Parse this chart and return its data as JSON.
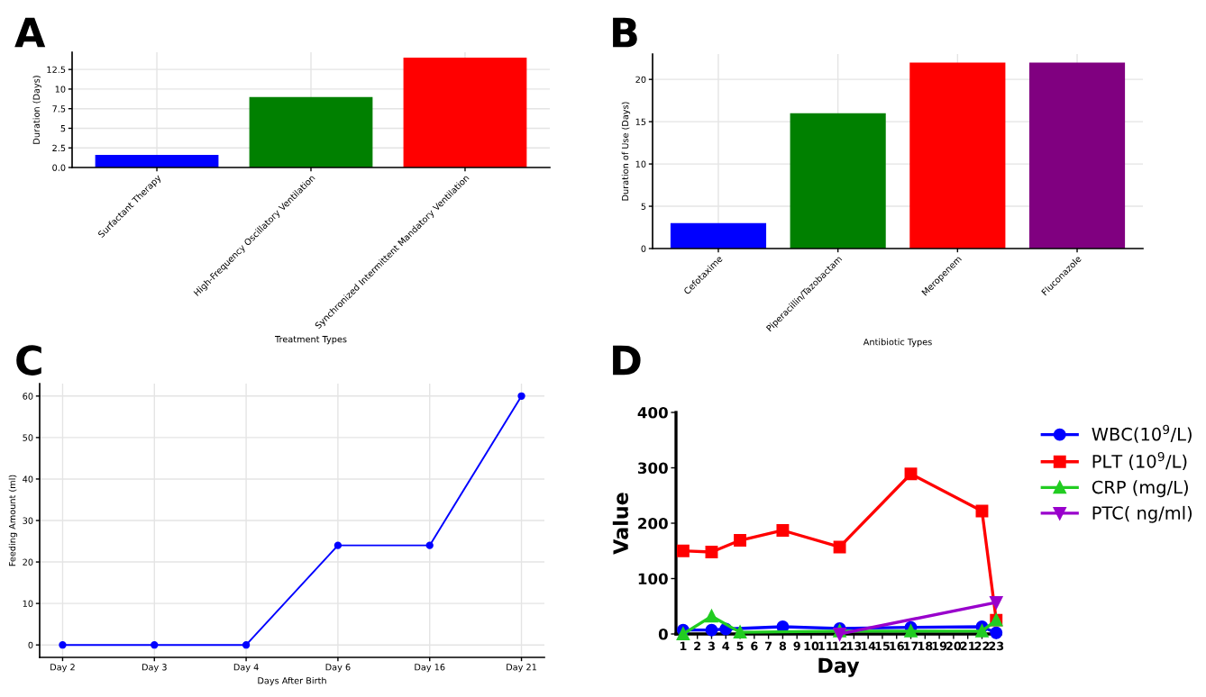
{
  "chart_data": [
    {
      "type": "bar",
      "title": "A",
      "xlabel": "Treatment Types",
      "ylabel": "Duration (Days)",
      "categories": [
        "Surfactant Therapy",
        "High-Frequency Oscillatory Ventilation",
        "Synchronized Intermittent Mandatory Ventilation"
      ],
      "values": [
        1.6,
        9,
        14
      ],
      "colors": [
        "#0000ff",
        "#008000",
        "#ff0000"
      ],
      "ylim": [
        0,
        14.7
      ],
      "yticks": [
        {
          "value": 0,
          "label": "0.0"
        },
        2.5,
        5,
        7.5,
        10,
        12.5
      ],
      "grid": true
    },
    {
      "type": "bar",
      "title": "B",
      "xlabel": "Antibiotic Types",
      "ylabel": "Duration of Use (Days)",
      "categories": [
        "Cefotaxime",
        "Piperacillin/Tazobactam",
        "Meropenem",
        "Fluconazole"
      ],
      "values": [
        3,
        16,
        22,
        22
      ],
      "colors": [
        "#0000ff",
        "#008000",
        "#ff0000",
        "#800080"
      ],
      "ylim": [
        0,
        23
      ],
      "yticks": [
        0,
        5,
        10,
        15,
        20
      ],
      "grid": true
    },
    {
      "type": "line",
      "title": "C",
      "xlabel": "Days After Birth",
      "ylabel": "Feeding Amount (ml)",
      "categories": [
        "Day 2",
        "Day 3",
        "Day 4",
        "Day 6",
        "Day 16",
        "Day 21"
      ],
      "values": [
        0,
        0,
        0,
        24,
        24,
        60
      ],
      "color": "#0000ff",
      "marker": "circle",
      "ylim": [
        -3,
        63
      ],
      "yticks": [
        0,
        10,
        20,
        30,
        40,
        50,
        60
      ],
      "grid": true
    },
    {
      "type": "line",
      "title": "D",
      "xlabel": "Day",
      "ylabel": "Value",
      "xlim": [
        0.5,
        23.3
      ],
      "xticks": [
        1,
        2,
        3,
        4,
        5,
        6,
        7,
        8,
        9,
        10,
        11,
        12,
        13,
        14,
        15,
        16,
        17,
        18,
        19,
        20,
        21,
        22,
        23
      ],
      "ylim": [
        0,
        400
      ],
      "yticks": [
        0,
        100,
        200,
        300,
        400
      ],
      "legend": "right",
      "series": [
        {
          "name": "WBC(10$^{9}$/L)",
          "color": "#0000ff",
          "marker": "circle",
          "x": [
            1,
            3,
            4,
            8,
            12,
            17,
            22,
            23
          ],
          "values": [
            7,
            7,
            9,
            13,
            10,
            12,
            13,
            2
          ]
        },
        {
          "name": "PLT (10$^{9}$/L)",
          "color": "#ff0000",
          "marker": "square",
          "x": [
            1,
            3,
            5,
            8,
            12,
            17,
            22,
            23
          ],
          "values": [
            150,
            148,
            169,
            187,
            157,
            289,
            222,
            25
          ]
        },
        {
          "name": "CRP (mg/L)",
          "color": "#22cc22",
          "marker": "triangle",
          "x": [
            1,
            3,
            5,
            12,
            17,
            22,
            23
          ],
          "values": [
            0,
            32,
            3,
            5,
            5,
            5,
            25
          ]
        },
        {
          "name": "PTC( ng/ml)",
          "color": "#9900cc",
          "marker": "triangle_down",
          "x": [
            12,
            23
          ],
          "values": [
            0,
            57
          ]
        }
      ]
    }
  ]
}
